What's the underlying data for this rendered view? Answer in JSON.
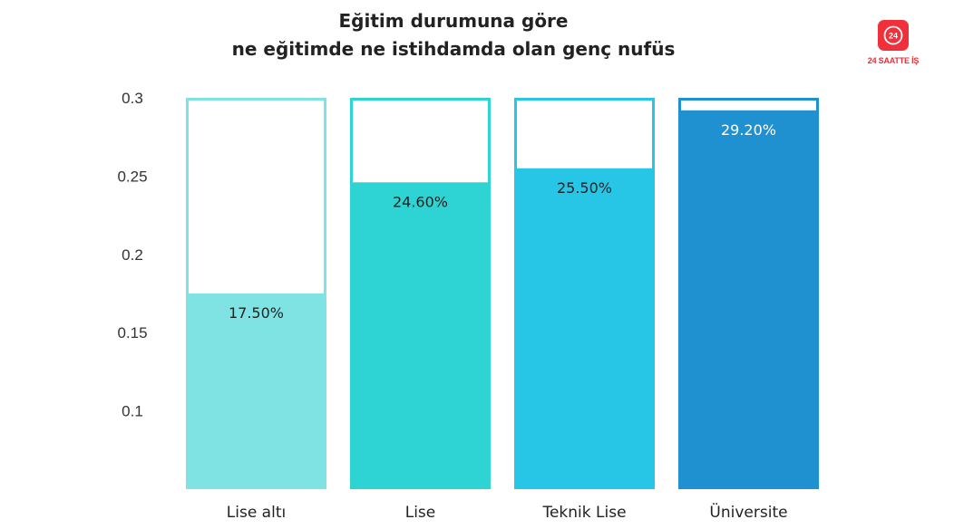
{
  "title_line1": "Eğitim durumuna göre",
  "title_line2": "ne eğitimde ne istihdamda olan genç nufüs",
  "logo": {
    "text": "24 SAATTE İŞ",
    "icon": "24-clock-icon",
    "color": "#f0303a"
  },
  "chart_data": {
    "type": "bar",
    "categories": [
      "Lise altı",
      "Lise",
      "Teknik Lise",
      "Üniversite"
    ],
    "values": [
      0.175,
      0.246,
      0.255,
      0.292
    ],
    "data_labels": [
      "17.50%",
      "24.60%",
      "25.50%",
      "29.20%"
    ],
    "colors": [
      "#7fe3e3",
      "#2ed3d3",
      "#28c6e6",
      "#1f91d0"
    ],
    "label_colors": [
      "#222222",
      "#222222",
      "#222222",
      "#ffffff"
    ],
    "yticks": [
      "0.1",
      "0.15",
      "0.2",
      "0.25",
      "0.3"
    ],
    "ylim": [
      0.05,
      0.3
    ],
    "grid": false,
    "legend": "none"
  }
}
